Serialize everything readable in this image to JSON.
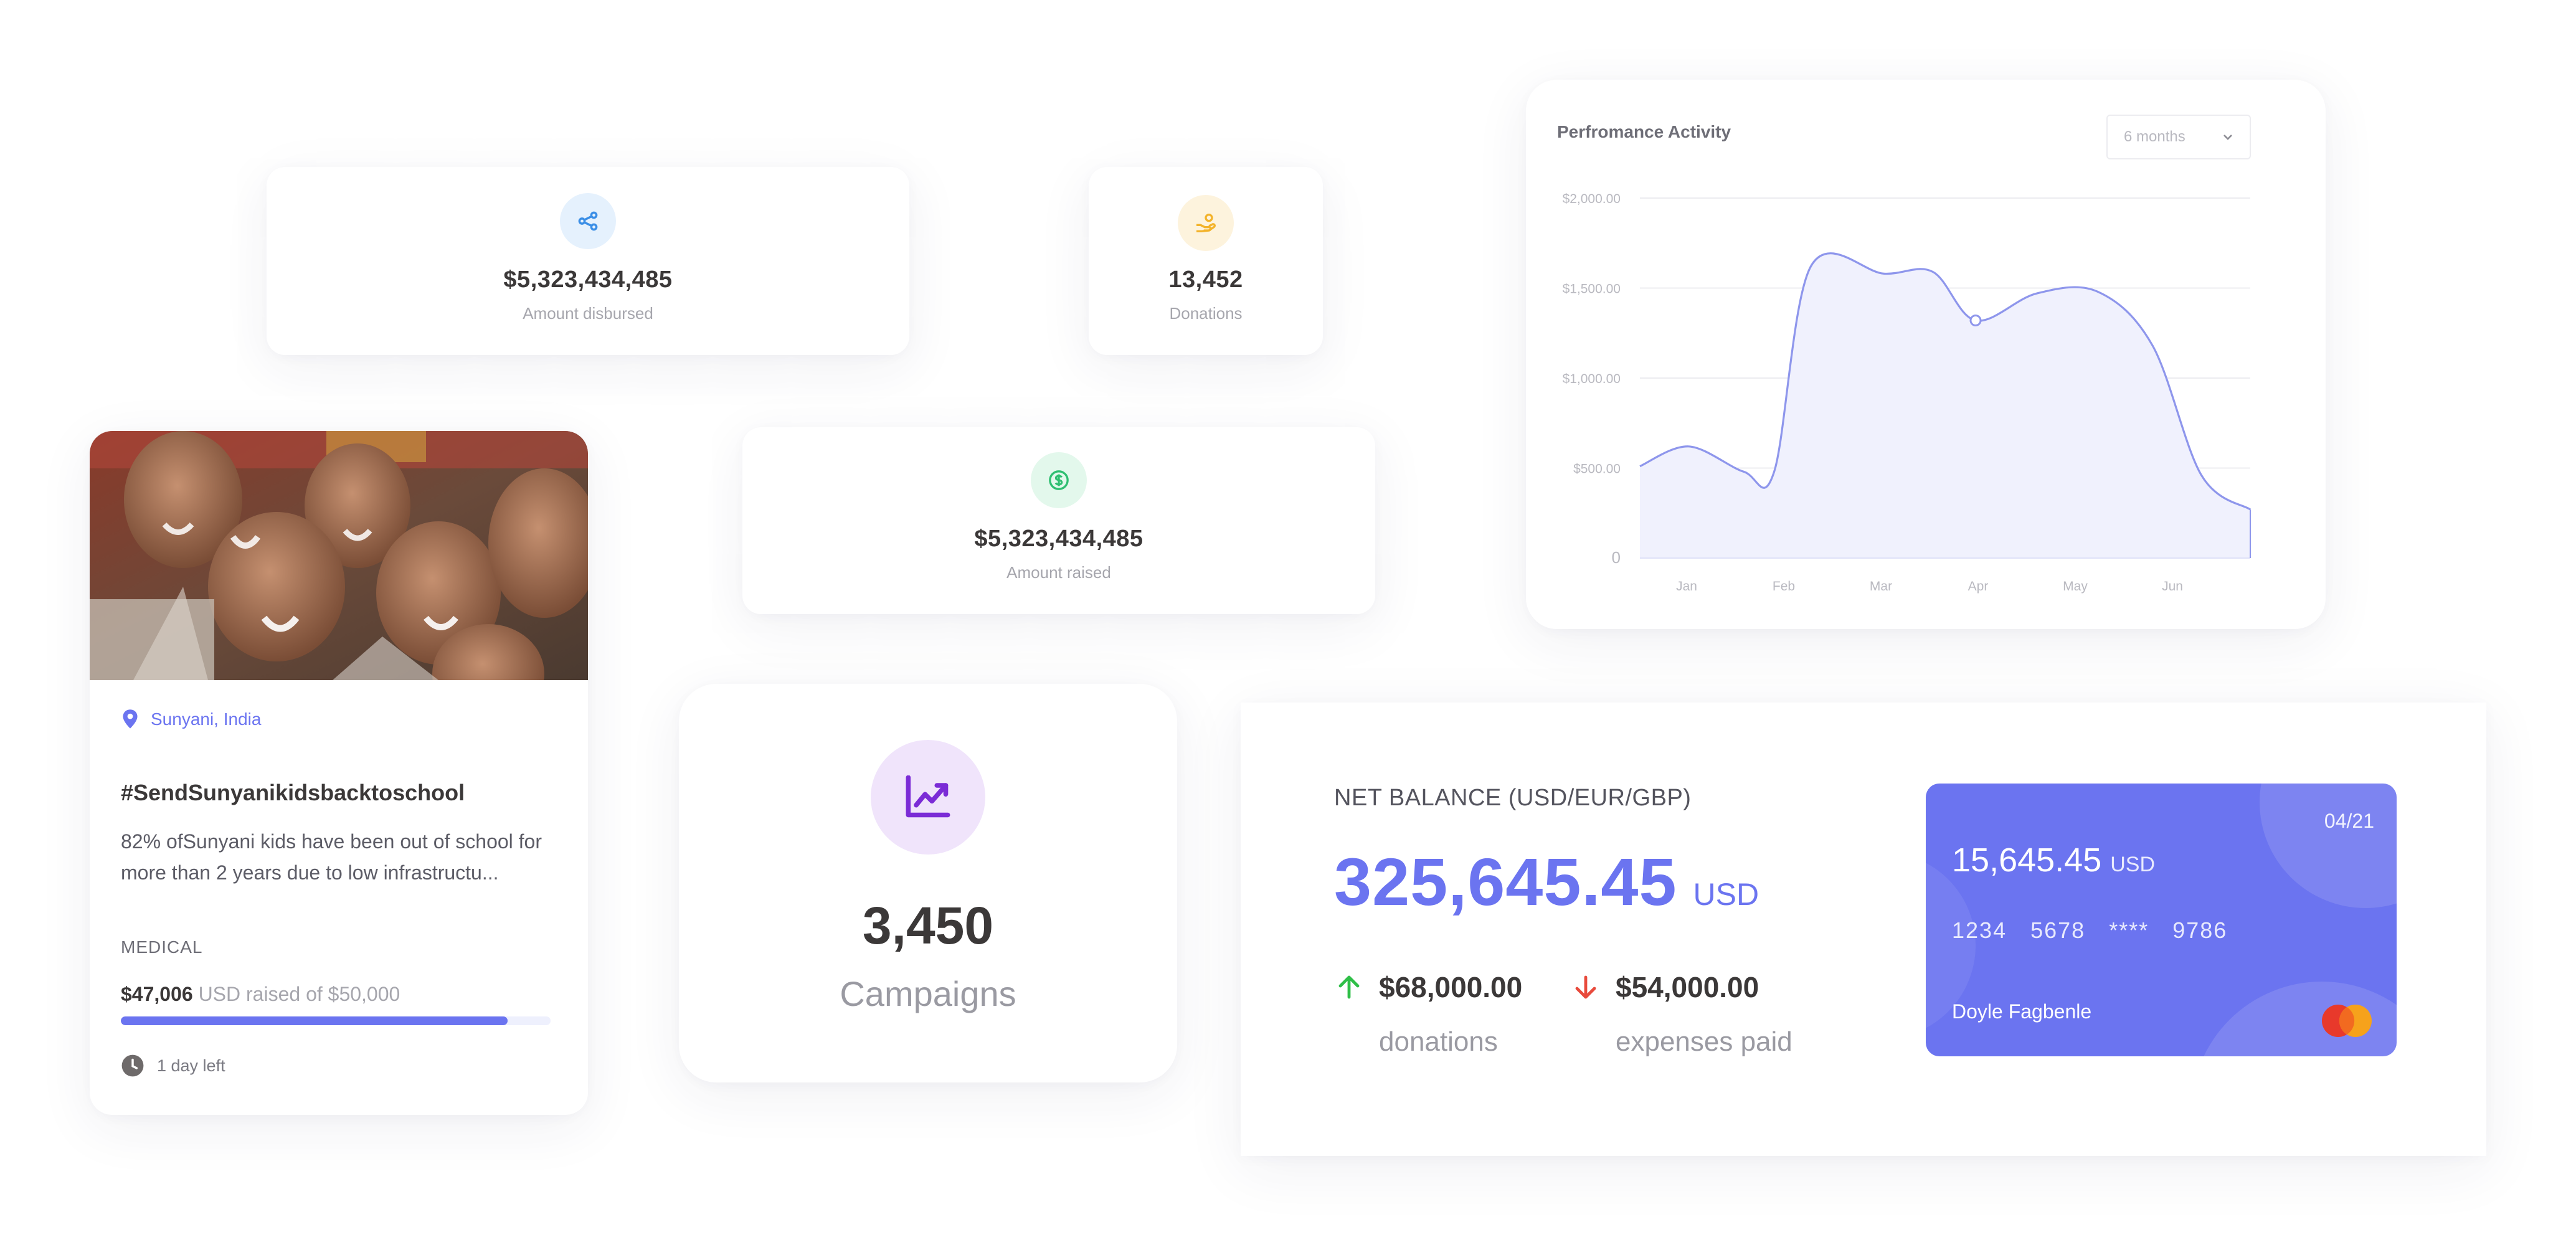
{
  "stats": {
    "disbursed": {
      "value": "$5,323,434,485",
      "label": "Amount disbursed",
      "icon": "share-nodes-icon",
      "icon_color": "#3a8ee6",
      "icon_bg": "#e5f1fd"
    },
    "donations": {
      "value": "13,452",
      "label": "Donations",
      "icon": "hand-coin-icon",
      "icon_color": "#f3b32b",
      "icon_bg": "#fdf3dd"
    },
    "raised": {
      "value": "$5,323,434,485",
      "label": "Amount raised",
      "icon": "dollar-circle-icon",
      "icon_color": "#2fbf71",
      "icon_bg": "#e3f8ec"
    }
  },
  "campaign": {
    "location": "Sunyani, India",
    "title": "#SendSunyanikidsbacktoschool",
    "description": "82% ofSunyani kids have been out of school for more than 2 years due to low infrastructu...",
    "category": "MEDICAL",
    "raised_amount": "$47,006",
    "raised_text": "USD raised of $50,000",
    "progress": 0.9,
    "time_left": "1 day left"
  },
  "campaigns": {
    "count": "3,450",
    "label": "Campaigns",
    "icon": "trend-chart-icon",
    "accent": "#7b2bd6",
    "icon_bg": "#f0e4fb"
  },
  "performance": {
    "title": "Perfromance Activity",
    "period_select": "6 months"
  },
  "chart_data": {
    "type": "area",
    "title": "Perfromance Activity",
    "categories": [
      "Jan",
      "Feb",
      "Mar",
      "Apr",
      "May",
      "Jun"
    ],
    "y_ticks": [
      "$2,000.00",
      "$1,500.00",
      "$1,000.00",
      "$500.00",
      "0"
    ],
    "ylim": [
      0,
      2000
    ],
    "grid": true,
    "color": "#8e96ec",
    "fill": "#f0f1fd",
    "series": [
      {
        "x": [
          0,
          0.4,
          0.85,
          1.1,
          1.4,
          2.0,
          2.4,
          2.75,
          3.25,
          3.75,
          4.2,
          4.6,
          5.0
        ],
        "values": [
          510,
          620,
          480,
          480,
          1620,
          1580,
          1590,
          1320,
          1470,
          1480,
          1180,
          460,
          270
        ]
      }
    ],
    "highlight_point": {
      "x": 2.75,
      "value": 1320
    }
  },
  "balance": {
    "title": "NET BALANCE (USD/EUR/GBP)",
    "amount": "325,645.45",
    "currency": "USD",
    "inflow": {
      "amount": "$68,000.00",
      "label": "donations",
      "color": "#2fbf48"
    },
    "outflow": {
      "amount": "$54,000.00",
      "label": "expenses paid",
      "color": "#e84a3c"
    }
  },
  "bank_card": {
    "expiry": "04/21",
    "balance": "15,645.45",
    "currency": "USD",
    "number_groups": [
      "1234",
      "5678",
      "****",
      "9786"
    ],
    "holder": "Doyle Fagbenle",
    "brand": "MasterCard",
    "color": "#6b74f0"
  }
}
